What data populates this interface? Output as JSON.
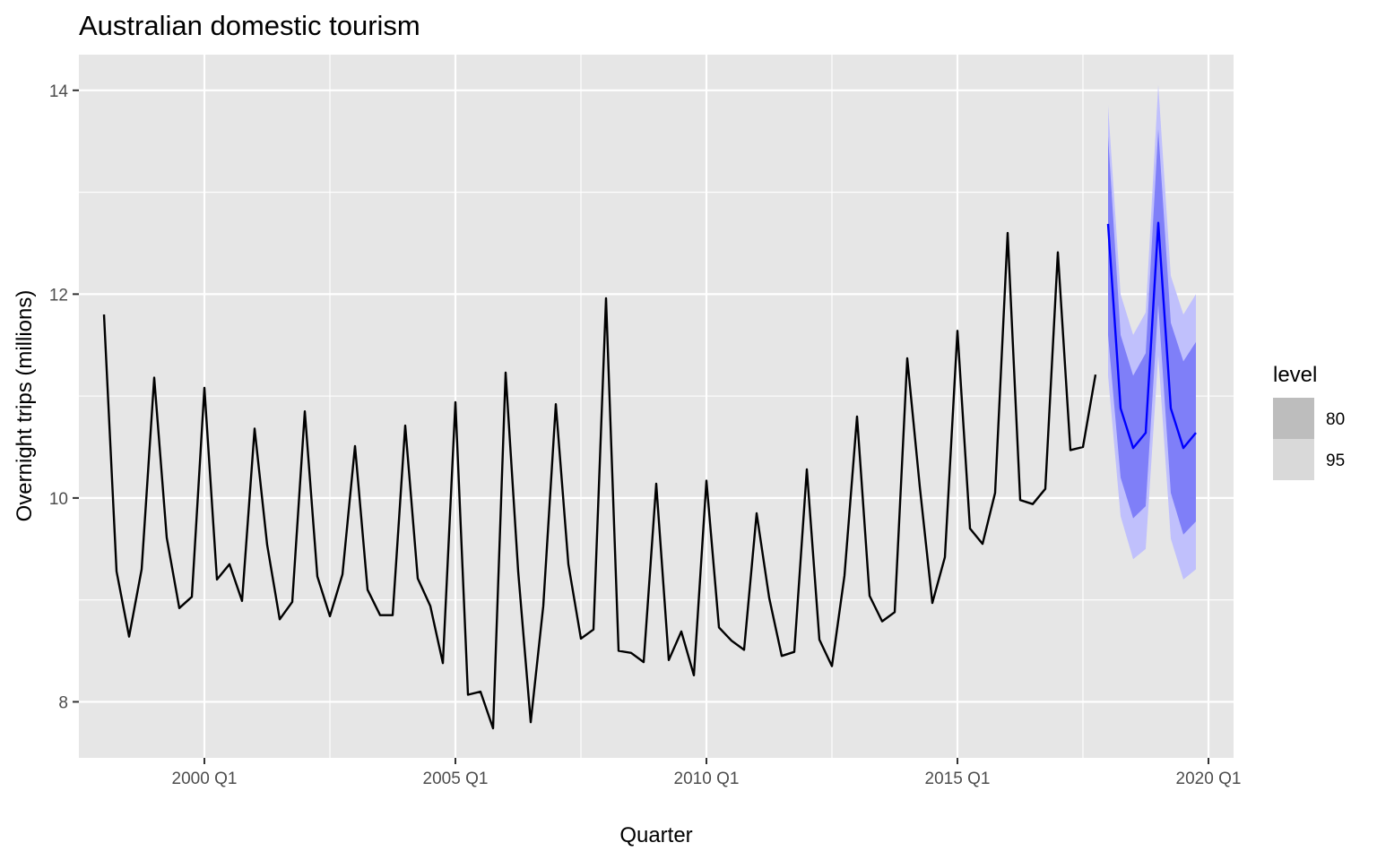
{
  "chart_data": {
    "type": "line",
    "title": "Australian domestic tourism",
    "xlabel": "Quarter",
    "ylabel": "Overnight trips (millions)",
    "x_ticks": [
      "2000 Q1",
      "2005 Q1",
      "2010 Q1",
      "2015 Q1",
      "2020 Q1"
    ],
    "y_ticks": [
      "8",
      "10",
      "12",
      "14"
    ],
    "xlim": [
      "1997 Q3",
      "2020 Q3"
    ],
    "ylim": [
      7.45,
      14.35
    ],
    "grid": true,
    "legend": {
      "title": "level",
      "placement": "right",
      "entries": [
        {
          "label": "80",
          "color": "#bdbdbd"
        },
        {
          "label": "95",
          "color": "#d9d9d9"
        }
      ]
    },
    "colors": {
      "panel": "#e6e6e6",
      "grid": "#ffffff",
      "actual_line": "#000000",
      "forecast_line": "#0000ff",
      "band_80": "#7f7ff8",
      "band_95": "#c0c0fc"
    },
    "series": [
      {
        "start": "1998 Q1",
        "values": [
          11.8,
          9.28,
          8.64,
          9.3,
          11.18,
          9.61,
          8.92,
          9.03,
          11.08,
          9.2,
          9.35,
          8.99,
          10.68,
          9.54,
          8.81,
          8.98,
          10.85,
          9.23,
          8.84,
          9.25,
          10.51,
          9.1,
          8.85,
          8.85,
          10.71,
          9.21,
          8.94,
          8.38,
          10.94,
          8.07,
          8.1,
          7.74,
          11.23,
          9.28,
          7.8,
          8.94,
          10.92,
          9.35,
          8.62,
          8.71,
          11.96,
          8.5,
          8.48,
          8.39,
          10.14,
          8.41,
          8.69,
          8.26,
          10.17,
          8.73,
          8.6,
          8.51,
          9.85,
          9.02,
          8.45,
          8.49,
          10.28,
          8.61,
          8.35,
          9.24,
          10.8,
          9.04,
          8.79,
          8.88,
          11.37,
          10.11,
          8.97,
          9.42,
          11.64,
          9.7,
          9.55,
          10.05,
          12.6,
          9.98,
          9.94,
          10.09,
          12.41,
          10.47,
          10.5,
          11.21
        ]
      },
      {
        "start": "2018 Q1",
        "values": [
          12.69,
          10.88,
          10.49,
          10.64,
          12.7,
          10.88,
          10.49,
          10.64
        ],
        "lower_80": [
          11.6,
          10.2,
          9.8,
          9.92,
          11.9,
          10.05,
          9.64,
          9.77
        ],
        "upper_80": [
          13.55,
          11.6,
          11.2,
          11.42,
          13.62,
          11.72,
          11.34,
          11.53
        ],
        "lower_95": [
          11.2,
          9.82,
          9.4,
          9.5,
          11.4,
          9.6,
          9.2,
          9.3
        ],
        "upper_95": [
          13.85,
          12.0,
          11.6,
          11.82,
          14.05,
          12.18,
          11.8,
          12.0
        ]
      }
    ]
  }
}
